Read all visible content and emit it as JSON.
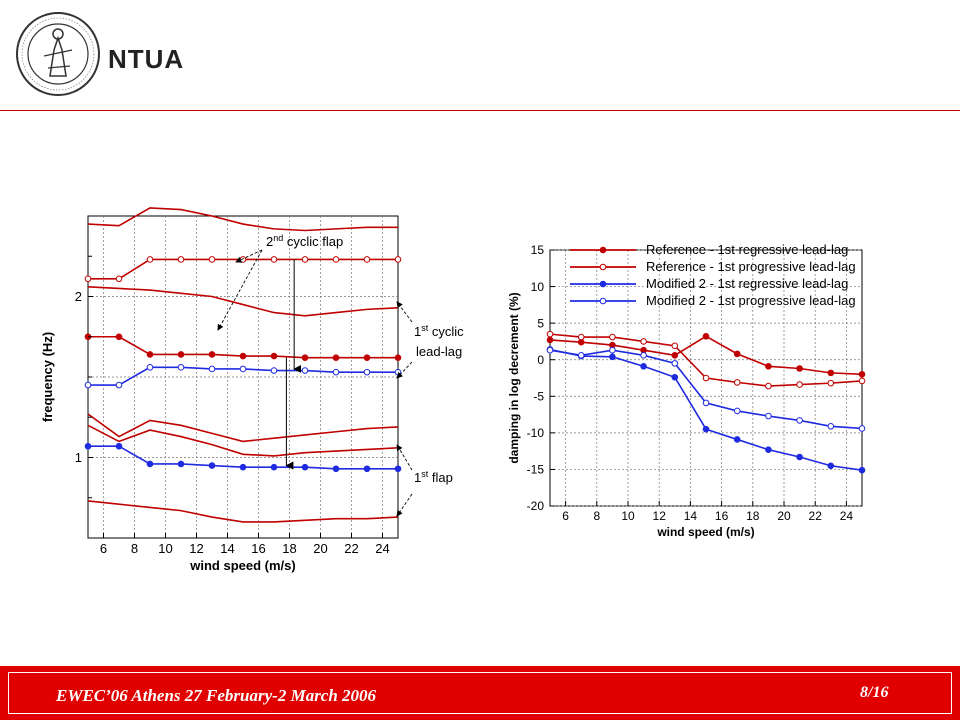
{
  "header": {
    "org": "NTUA",
    "logo_icon": "ntua-seal-icon"
  },
  "footer": {
    "event": "EWEC’06 Athens 27 February-2 March 2006",
    "page": "8/16"
  },
  "colors": {
    "accent": "#e10000",
    "reference": "#c00000",
    "modified": "#1f2be0",
    "rule": "#c00000"
  },
  "chart_data": [
    {
      "type": "line",
      "xlabel": "wind speed (m/s)",
      "ylabel": "frequency (Hz)",
      "xlim": [
        5,
        25
      ],
      "ylim": [
        0.5,
        2.5
      ],
      "xticks": [
        6,
        8,
        10,
        12,
        14,
        16,
        18,
        20,
        22,
        24
      ],
      "yticks": [
        1,
        2
      ],
      "grid": true,
      "annotations": [
        {
          "text": "2",
          "sup": "nd",
          "rest": " cyclic flap"
        },
        {
          "text": "1",
          "sup": "st",
          "rest": " cyclic",
          "line2": "lead-lag"
        },
        {
          "text": "1",
          "sup": "st",
          "rest": " flap"
        }
      ],
      "series": [
        {
          "group": "reference",
          "marker": "none",
          "x": [
            5,
            7,
            9,
            11,
            13,
            15,
            17,
            19,
            21,
            23,
            25
          ],
          "y": [
            2.45,
            2.44,
            2.55,
            2.54,
            2.5,
            2.45,
            2.42,
            2.41,
            2.42,
            2.43,
            2.43
          ]
        },
        {
          "group": "reference",
          "marker": "open",
          "x": [
            5,
            7,
            9,
            11,
            13,
            15,
            17,
            19,
            21,
            23,
            25
          ],
          "y": [
            2.11,
            2.11,
            2.23,
            2.23,
            2.23,
            2.23,
            2.23,
            2.23,
            2.23,
            2.23,
            2.23
          ]
        },
        {
          "group": "reference",
          "marker": "none",
          "x": [
            5,
            7,
            9,
            11,
            13,
            15,
            17,
            19,
            21,
            23,
            25
          ],
          "y": [
            2.06,
            2.05,
            2.04,
            2.02,
            2.0,
            1.95,
            1.9,
            1.88,
            1.9,
            1.92,
            1.93
          ]
        },
        {
          "group": "reference",
          "marker": "filled",
          "x": [
            5,
            7,
            9,
            11,
            13,
            15,
            17,
            19,
            21,
            23,
            25
          ],
          "y": [
            1.75,
            1.75,
            1.64,
            1.64,
            1.64,
            1.63,
            1.63,
            1.62,
            1.62,
            1.62,
            1.62
          ]
        },
        {
          "group": "modified",
          "marker": "open",
          "x": [
            5,
            7,
            9,
            11,
            13,
            15,
            17,
            19,
            21,
            23,
            25
          ],
          "y": [
            1.45,
            1.45,
            1.56,
            1.56,
            1.55,
            1.55,
            1.54,
            1.54,
            1.53,
            1.53,
            1.53
          ]
        },
        {
          "group": "reference",
          "marker": "none",
          "x": [
            5,
            7,
            9,
            11,
            13,
            15,
            17,
            19,
            21,
            23,
            25
          ],
          "y": [
            1.27,
            1.13,
            1.23,
            1.2,
            1.15,
            1.1,
            1.12,
            1.14,
            1.16,
            1.18,
            1.19
          ]
        },
        {
          "group": "reference",
          "marker": "none",
          "x": [
            5,
            7,
            9,
            11,
            13,
            15,
            17,
            19,
            21,
            23,
            25
          ],
          "y": [
            1.2,
            1.1,
            1.17,
            1.13,
            1.08,
            1.02,
            1.01,
            1.03,
            1.04,
            1.05,
            1.06
          ]
        },
        {
          "group": "modified",
          "marker": "filled",
          "x": [
            5,
            7,
            9,
            11,
            13,
            15,
            17,
            19,
            21,
            23,
            25
          ],
          "y": [
            1.07,
            1.07,
            0.96,
            0.96,
            0.95,
            0.94,
            0.94,
            0.94,
            0.93,
            0.93,
            0.93
          ]
        },
        {
          "group": "reference",
          "marker": "none",
          "x": [
            5,
            7,
            9,
            11,
            13,
            15,
            17,
            19,
            21,
            23,
            25
          ],
          "y": [
            0.73,
            0.71,
            0.69,
            0.67,
            0.63,
            0.6,
            0.6,
            0.61,
            0.62,
            0.62,
            0.63
          ]
        }
      ]
    },
    {
      "type": "line",
      "xlabel": "wind speed (m/s)",
      "ylabel": "damping in log decrement (%)",
      "xlim": [
        5,
        25
      ],
      "ylim": [
        -20,
        15
      ],
      "xticks": [
        6,
        8,
        10,
        12,
        14,
        16,
        18,
        20,
        22,
        24
      ],
      "yticks": [
        15,
        10,
        5,
        0,
        -5,
        -10,
        -15,
        -20
      ],
      "grid": true,
      "legend": "top",
      "series": [
        {
          "name": "Reference - 1st regressive lead-lag",
          "group": "reference",
          "marker": "filled",
          "x": [
            5,
            7,
            9,
            11,
            13,
            15,
            17,
            19,
            21,
            23,
            25
          ],
          "y": [
            2.7,
            2.4,
            2.0,
            1.3,
            0.6,
            3.2,
            0.8,
            -0.9,
            -1.2,
            -1.8,
            -2.0
          ]
        },
        {
          "name": "Reference - 1st progressive lead-lag",
          "group": "reference",
          "marker": "open",
          "x": [
            5,
            7,
            9,
            11,
            13,
            15,
            17,
            19,
            21,
            23,
            25
          ],
          "y": [
            3.5,
            3.1,
            3.1,
            2.5,
            1.9,
            -2.5,
            -3.1,
            -3.6,
            -3.4,
            -3.2,
            -2.9
          ]
        },
        {
          "name": "Modified 2 - 1st regressive lead-lag",
          "group": "modified",
          "marker": "filled",
          "x": [
            5,
            7,
            9,
            11,
            13,
            15,
            17,
            19,
            21,
            23,
            25
          ],
          "y": [
            1.4,
            0.5,
            0.4,
            -0.9,
            -2.4,
            -9.5,
            -10.9,
            -12.3,
            -13.3,
            -14.5,
            -15.1
          ]
        },
        {
          "name": "Modified 2 - 1st progressive lead-lag",
          "group": "modified",
          "marker": "open",
          "x": [
            5,
            7,
            9,
            11,
            13,
            15,
            17,
            19,
            21,
            23,
            25
          ],
          "y": [
            1.3,
            0.6,
            1.3,
            0.6,
            -0.5,
            -5.9,
            -7.0,
            -7.7,
            -8.3,
            -9.1,
            -9.4
          ]
        }
      ]
    }
  ]
}
